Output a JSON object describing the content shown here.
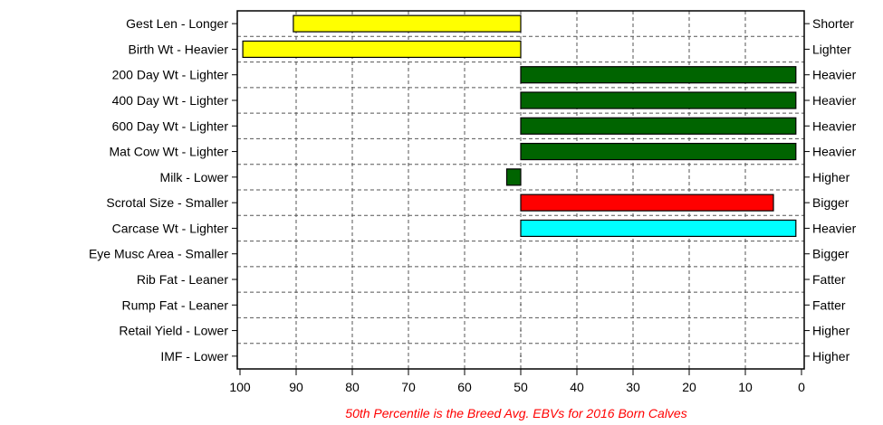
{
  "chart_data": {
    "type": "bar",
    "orientation": "horizontal",
    "baseline": 50,
    "xlim": [
      100,
      0
    ],
    "x_reversed": true,
    "x_ticks": [
      "100",
      "90",
      "80",
      "70",
      "60",
      "50",
      "40",
      "30",
      "20",
      "10",
      "0"
    ],
    "grid": true,
    "footnote": "50th Percentile is the Breed Avg. EBVs for 2016 Born Calves",
    "footnote_color": "#ff0000",
    "categories": [
      {
        "left": "Gest Len - Longer",
        "right": "Shorter",
        "value": 90.5,
        "color": "#ffff00"
      },
      {
        "left": "Birth Wt - Heavier",
        "right": "Lighter",
        "value": 99.5,
        "color": "#ffff00"
      },
      {
        "left": "200 Day Wt - Lighter",
        "right": "Heavier",
        "value": 1,
        "color": "#006400"
      },
      {
        "left": "400 Day Wt - Lighter",
        "right": "Heavier",
        "value": 1,
        "color": "#006400"
      },
      {
        "left": "600 Day Wt - Lighter",
        "right": "Heavier",
        "value": 1,
        "color": "#006400"
      },
      {
        "left": "Mat Cow Wt - Lighter",
        "right": "Heavier",
        "value": 1,
        "color": "#006400"
      },
      {
        "left": "Milk - Lower",
        "right": "Higher",
        "value": 52.5,
        "color": "#006400"
      },
      {
        "left": "Scrotal Size - Smaller",
        "right": "Bigger",
        "value": 5,
        "color": "#ff0000"
      },
      {
        "left": "Carcase Wt - Lighter",
        "right": "Heavier",
        "value": 1,
        "color": "#00ffff"
      },
      {
        "left": "Eye Musc Area - Smaller",
        "right": "Bigger",
        "value": null,
        "color": ""
      },
      {
        "left": "Rib Fat - Leaner",
        "right": "Fatter",
        "value": null,
        "color": ""
      },
      {
        "left": "Rump Fat - Leaner",
        "right": "Fatter",
        "value": null,
        "color": ""
      },
      {
        "left": "Retail Yield - Lower",
        "right": "Higher",
        "value": null,
        "color": ""
      },
      {
        "left": "IMF - Lower",
        "right": "Higher",
        "value": null,
        "color": ""
      }
    ]
  }
}
